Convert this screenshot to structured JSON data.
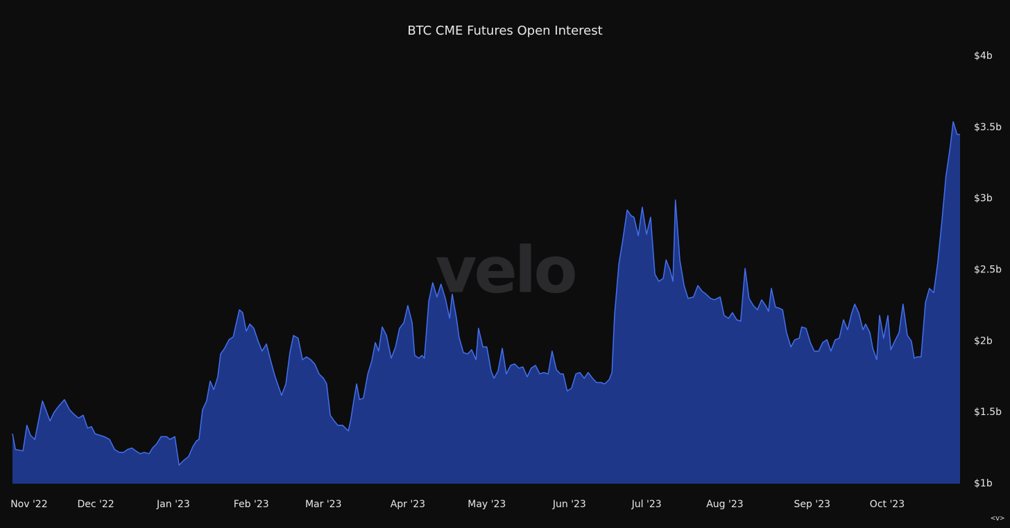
{
  "chart_data": {
    "type": "area",
    "title": "BTC CME Futures Open Interest",
    "watermark": "velo",
    "controls": "<v>",
    "color": "#4470f0",
    "fill": "#1e3788",
    "background": "#0d0d0e",
    "grid": false,
    "xlim": [
      0,
      262.7
    ],
    "xticks": [
      {
        "value": 4.6,
        "label": "Nov '22"
      },
      {
        "value": 23.1,
        "label": "Dec '22"
      },
      {
        "value": 44.6,
        "label": "Jan '23"
      },
      {
        "value": 66.2,
        "label": "Feb '23"
      },
      {
        "value": 86.2,
        "label": "Mar '23"
      },
      {
        "value": 109.6,
        "label": "Apr '23"
      },
      {
        "value": 131.5,
        "label": "May '23"
      },
      {
        "value": 154.4,
        "label": "Jun '23"
      },
      {
        "value": 175.8,
        "label": "Jul '23"
      },
      {
        "value": 197.5,
        "label": "Aug '23"
      },
      {
        "value": 221.7,
        "label": "Sep '23"
      },
      {
        "value": 242.5,
        "label": "Oct '23"
      }
    ],
    "ylim": [
      1,
      4
    ],
    "yticks": [
      {
        "value": 1,
        "label": "$1b"
      },
      {
        "value": 1.5,
        "label": "$1.5b"
      },
      {
        "value": 2,
        "label": "$2b"
      },
      {
        "value": 2.5,
        "label": "$2.5b"
      },
      {
        "value": 3,
        "label": "$3b"
      },
      {
        "value": 3.5,
        "label": "$3.5b"
      },
      {
        "value": 4,
        "label": "$4b"
      }
    ],
    "x": [
      0,
      0.8,
      2.9,
      4.0,
      5.0,
      6.2,
      8.3,
      10.4,
      11.5,
      12.7,
      14.4,
      15.8,
      16.9,
      18.3,
      19.6,
      20.8,
      21.9,
      22.9,
      25.4,
      26.9,
      28.3,
      29.6,
      30.8,
      31.9,
      33.1,
      34.2,
      35.4,
      36.5,
      37.9,
      38.8,
      40.0,
      41.2,
      42.7,
      43.7,
      45.0,
      46.2,
      47.3,
      48.8,
      50.0,
      51.0,
      51.7,
      52.7,
      53.8,
      54.8,
      55.8,
      56.9,
      57.7,
      58.8,
      60.0,
      61.2,
      61.9,
      62.9,
      63.8,
      64.8,
      65.8,
      66.9,
      68.1,
      69.2,
      70.4,
      71.5,
      72.7,
      74.6,
      75.8,
      76.9,
      77.9,
      79.2,
      80.4,
      81.5,
      82.7,
      83.8,
      85.0,
      86.2,
      87.1,
      88.1,
      89.2,
      90.2,
      91.5,
      93.1,
      93.8,
      94.6,
      95.4,
      96.2,
      97.3,
      98.5,
      99.6,
      100.6,
      101.5,
      102.5,
      103.7,
      105.0,
      106.2,
      107.3,
      108.5,
      109.6,
      110.8,
      111.5,
      112.7,
      113.5,
      114.2,
      115.4,
      116.5,
      117.7,
      118.8,
      120.0,
      121.2,
      121.9,
      123.1,
      123.8,
      125.0,
      126.2,
      127.3,
      128.5,
      129.2,
      130.4,
      131.5,
      132.7,
      133.5,
      134.6,
      135.8,
      136.9,
      138.1,
      139.2,
      140.4,
      141.5,
      142.7,
      143.8,
      145.0,
      146.2,
      147.3,
      148.5,
      149.6,
      150.8,
      151.9,
      152.7,
      153.8,
      155.0,
      156.2,
      157.3,
      158.5,
      159.6,
      160.8,
      161.9,
      163.1,
      164.2,
      165.4,
      166.2,
      166.9,
      168.1,
      169.2,
      170.4,
      171.5,
      172.3,
      173.5,
      174.6,
      175.8,
      176.9,
      178.1,
      179.2,
      180.4,
      181.2,
      182.3,
      183.1,
      183.8,
      185.0,
      186.2,
      187.3,
      188.8,
      190.0,
      191.2,
      192.3,
      193.5,
      194.6,
      196.2,
      197.3,
      198.5,
      199.6,
      200.8,
      201.9,
      203.1,
      204.2,
      205.4,
      206.5,
      207.7,
      208.8,
      209.6,
      210.4,
      211.5,
      212.7,
      213.5,
      214.6,
      215.8,
      216.9,
      218.1,
      218.8,
      220.0,
      221.2,
      222.3,
      223.5,
      224.6,
      225.8,
      226.9,
      228.1,
      229.2,
      230.4,
      231.5,
      232.7,
      233.5,
      234.6,
      235.8,
      236.5,
      237.7,
      238.5,
      239.6,
      240.4,
      241.5,
      242.7,
      243.5,
      244.6,
      245.8,
      246.9,
      248.1,
      249.2,
      250.0,
      250.8,
      251.9,
      253.1,
      254.2,
      255.4,
      256.5,
      257.7,
      258.8,
      260.0,
      260.8,
      261.9,
      262.7
    ],
    "values": [
      1.35,
      1.24,
      1.23,
      1.41,
      1.34,
      1.31,
      1.58,
      1.44,
      1.5,
      1.54,
      1.59,
      1.52,
      1.49,
      1.46,
      1.48,
      1.39,
      1.4,
      1.35,
      1.33,
      1.31,
      1.24,
      1.22,
      1.22,
      1.24,
      1.25,
      1.23,
      1.21,
      1.22,
      1.21,
      1.25,
      1.28,
      1.33,
      1.33,
      1.31,
      1.33,
      1.13,
      1.16,
      1.19,
      1.26,
      1.3,
      1.31,
      1.52,
      1.58,
      1.72,
      1.66,
      1.75,
      1.91,
      1.95,
      2.01,
      2.03,
      2.11,
      2.22,
      2.2,
      2.07,
      2.12,
      2.09,
      2.0,
      1.93,
      1.98,
      1.87,
      1.76,
      1.62,
      1.7,
      1.92,
      2.04,
      2.02,
      1.87,
      1.89,
      1.87,
      1.84,
      1.77,
      1.74,
      1.7,
      1.48,
      1.44,
      1.41,
      1.41,
      1.37,
      1.45,
      1.58,
      1.7,
      1.59,
      1.6,
      1.77,
      1.86,
      1.99,
      1.93,
      2.1,
      2.04,
      1.88,
      1.96,
      2.09,
      2.13,
      2.25,
      2.13,
      1.9,
      1.88,
      1.9,
      1.88,
      2.28,
      2.41,
      2.31,
      2.4,
      2.3,
      2.16,
      2.33,
      2.16,
      2.03,
      1.92,
      1.91,
      1.94,
      1.87,
      2.09,
      1.96,
      1.96,
      1.79,
      1.74,
      1.79,
      1.95,
      1.77,
      1.83,
      1.84,
      1.81,
      1.82,
      1.75,
      1.81,
      1.83,
      1.77,
      1.78,
      1.77,
      1.93,
      1.8,
      1.77,
      1.77,
      1.65,
      1.67,
      1.77,
      1.78,
      1.74,
      1.78,
      1.74,
      1.71,
      1.71,
      1.7,
      1.73,
      1.78,
      2.18,
      2.54,
      2.71,
      2.92,
      2.88,
      2.87,
      2.74,
      2.94,
      2.75,
      2.87,
      2.47,
      2.42,
      2.44,
      2.57,
      2.5,
      2.42,
      2.99,
      2.57,
      2.39,
      2.3,
      2.31,
      2.39,
      2.35,
      2.33,
      2.3,
      2.29,
      2.31,
      2.18,
      2.16,
      2.2,
      2.15,
      2.14,
      2.51,
      2.3,
      2.25,
      2.22,
      2.29,
      2.25,
      2.21,
      2.37,
      2.24,
      2.23,
      2.22,
      2.06,
      1.96,
      2.01,
      2.02,
      2.1,
      2.09,
      1.99,
      1.93,
      1.93,
      1.99,
      2.01,
      1.93,
      2.01,
      2.02,
      2.15,
      2.08,
      2.2,
      2.26,
      2.2,
      2.08,
      2.12,
      2.06,
      1.95,
      1.87,
      2.18,
      2.02,
      2.18,
      1.94,
      2.0,
      2.06,
      2.26,
      2.04,
      2.0,
      1.88,
      1.89,
      1.89,
      2.27,
      2.37,
      2.34,
      2.55,
      2.85,
      3.16,
      3.37,
      3.54,
      3.45,
      3.45
    ]
  }
}
